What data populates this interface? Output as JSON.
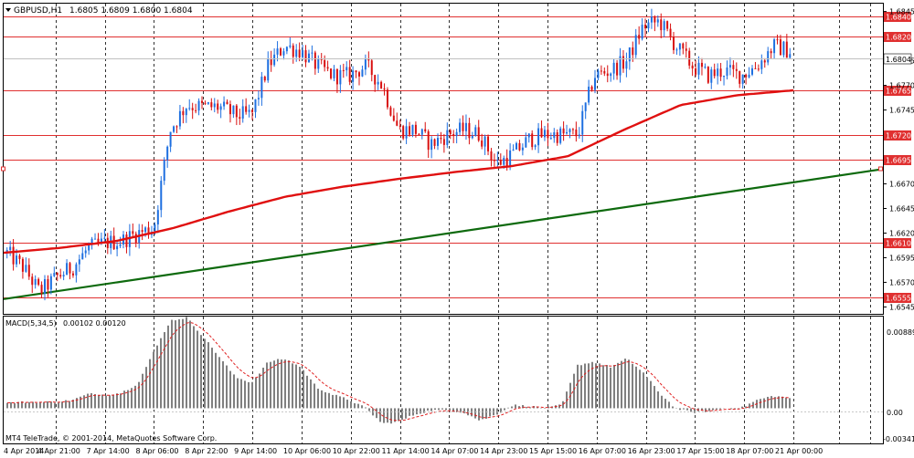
{
  "header": {
    "symbol_label": "GBPUSD,H1",
    "ohlc": "1.6805 1.6809 1.6800 1.6804"
  },
  "macd": {
    "label": "MACD(5,34,5)",
    "values": "0.00102 0.00120",
    "tick_labels": [
      "0.00889",
      "0.00",
      "-0.00341"
    ]
  },
  "footer": {
    "copyright": "MT4 TeleTrade, © 2001-2014, MetaQuotes Software Corp."
  },
  "colors": {
    "background": "#ffffff",
    "bull": "#1e6fe0",
    "bear": "#d81010",
    "ma": "#e01010",
    "trendline": "#0e6a0e",
    "level": "#e03030",
    "macd_bars": "#808080",
    "macd_signal": "#e02020"
  },
  "chart_data": [
    {
      "type": "candlestick",
      "title": "GBPUSD,H1",
      "price_axis": {
        "range": [
          1.6538,
          1.6853
        ],
        "tick_labels": [
          "1.6845",
          "1.6795",
          "1.6770",
          "1.6745",
          "1.6670",
          "1.6645",
          "1.6620",
          "1.6595",
          "1.6570",
          "1.6545"
        ]
      },
      "x_tick_labels": [
        "4 Apr 2014",
        "4 Apr 21:00",
        "7 Apr 14:00",
        "8 Apr 06:00",
        "8 Apr 22:00",
        "9 Apr 14:00",
        "10 Apr 06:00",
        "10 Apr 22:00",
        "11 Apr 14:00",
        "14 Apr 07:00",
        "14 Apr 23:00",
        "15 Apr 15:00",
        "16 Apr 07:00",
        "16 Apr 23:00",
        "17 Apr 15:00",
        "18 Apr 07:00",
        "21 Apr 00:00"
      ],
      "current_price": "1.6804",
      "horizontal_levels": [
        "1.6840",
        "1.6820",
        "1.6765",
        "1.6720",
        "1.6695",
        "1.6610",
        "1.6555"
      ],
      "close_path": [
        1.66,
        1.6585,
        1.656,
        1.6575,
        1.6585,
        1.6605,
        1.661,
        1.6612,
        1.662,
        1.6625,
        1.6725,
        1.675,
        1.6748,
        1.6748,
        1.674,
        1.674,
        1.679,
        1.681,
        1.6805,
        1.679,
        1.678,
        1.678,
        1.679,
        1.677,
        1.6725,
        1.6725,
        1.671,
        1.672,
        1.6725,
        1.672,
        1.669,
        1.67,
        1.6715,
        1.672,
        1.672,
        1.672,
        1.678,
        1.6785,
        1.6795,
        1.683,
        1.6835,
        1.681,
        1.679,
        1.678,
        1.6785,
        1.678,
        1.679,
        1.681,
        1.6805
      ],
      "ma_path": [
        1.66,
        1.6605,
        1.6612,
        1.6625,
        1.6642,
        1.6657,
        1.6667,
        1.6675,
        1.6682,
        1.6688,
        1.6698,
        1.6725,
        1.675,
        1.676,
        1.6765
      ],
      "trendline": {
        "from": 1.6553,
        "to": 1.6685
      }
    },
    {
      "type": "bar",
      "title": "MACD(5,34,5)",
      "ylim": [
        -0.00341,
        0.00889
      ],
      "histogram_path": [
        0.0005,
        0.0006,
        0.0006,
        0.0006,
        0.0008,
        0.0014,
        0.0013,
        0.0015,
        0.0024,
        0.0055,
        0.0085,
        0.0088,
        0.007,
        0.005,
        0.003,
        0.0025,
        0.0045,
        0.0048,
        0.004,
        0.002,
        0.0013,
        0.0008,
        0.0,
        -0.0015,
        -0.0013,
        -0.0006,
        -0.0002,
        -0.0002,
        -0.0004,
        -0.0012,
        -0.0006,
        0.0003,
        0.0002,
        0.0,
        0.0003,
        0.0042,
        0.0045,
        0.004,
        0.0048,
        0.0035,
        0.0015,
        0.0,
        -0.0004,
        -0.0003,
        0.0,
        0.0,
        0.0008,
        0.0012,
        0.001
      ]
    }
  ]
}
